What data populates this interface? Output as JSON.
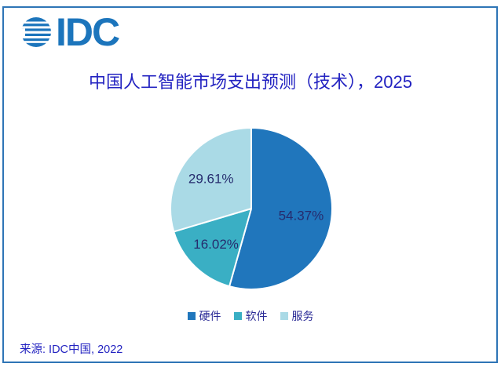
{
  "logo": {
    "text": "IDC"
  },
  "title": "中国人工智能市场支出预测（技术），2025",
  "source": "来源: IDC中国, 2022",
  "chart_data": {
    "type": "pie",
    "title": "中国人工智能市场支出预测（技术），2025",
    "start_angle": "12-oclock",
    "direction": "clockwise",
    "legend_position": "bottom",
    "radius_px": 103,
    "label_radius_px": 64,
    "segments": [
      {
        "label": "硬件",
        "value": 54.37,
        "display": "54.37%",
        "color": "#2076BC"
      },
      {
        "label": "软件",
        "value": 16.02,
        "display": "16.02%",
        "color": "#3AAFC4"
      },
      {
        "label": "服务",
        "value": 29.61,
        "display": "29.61%",
        "color": "#AADAE6"
      }
    ]
  },
  "colors": {
    "border": "#2E75B6",
    "title_text": "#2323C1",
    "pie_label_text": "#262C6E",
    "legend_text": "#2A2A96",
    "logo_blue": "#1C75BC",
    "background": "#FFFFFF",
    "slice_separator": "#FFFFFF"
  }
}
